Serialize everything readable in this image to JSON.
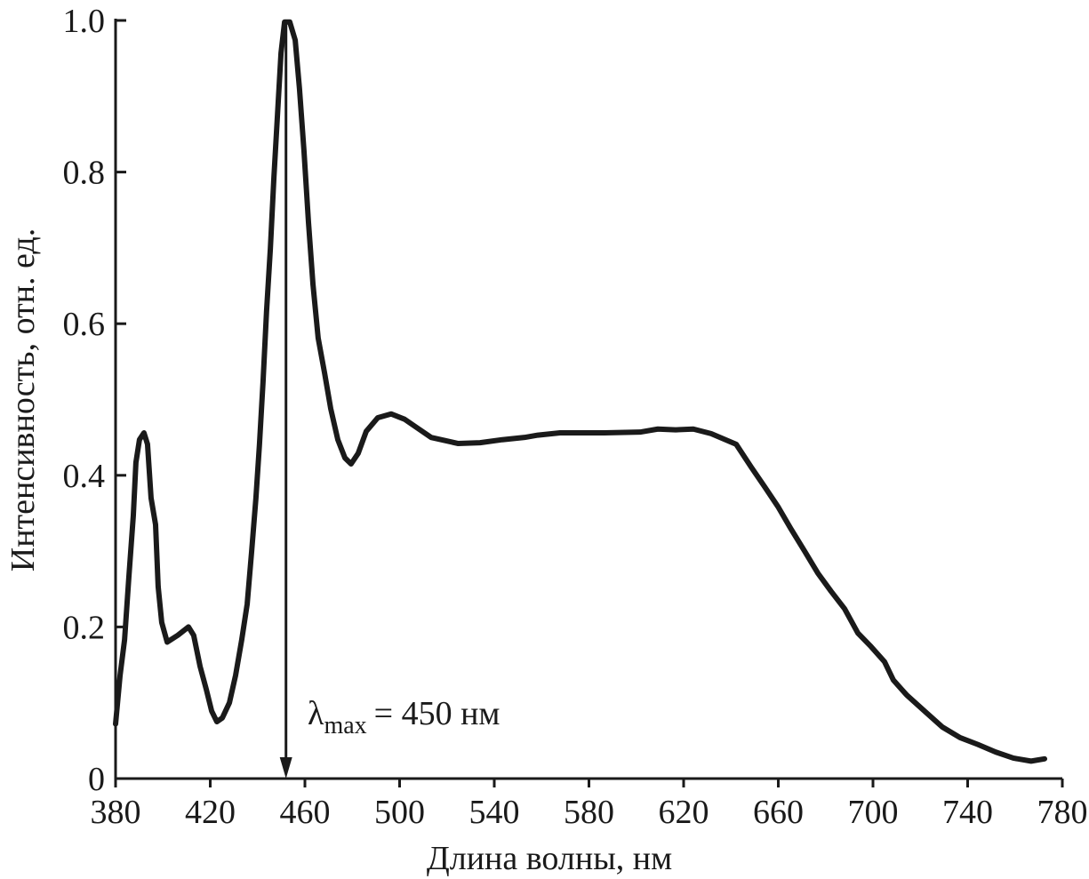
{
  "chart_data": {
    "type": "line",
    "xlabel": "Длина волны, нм",
    "ylabel": "Интенсивность, отн. ед.",
    "annotation": {
      "symbol": "λ",
      "subscript": "max",
      "text": "= 450 нм",
      "x": 452
    },
    "xlim": [
      380,
      780
    ],
    "xticks": [
      380,
      420,
      460,
      500,
      540,
      580,
      620,
      660,
      700,
      740,
      780
    ],
    "ylim": [
      0,
      1
    ],
    "yticks": [
      0,
      0.2,
      0.4,
      0.6,
      0.8,
      {
        "value": 1,
        "label": "1.0"
      }
    ],
    "series": [
      {
        "color": "#1a1a1a",
        "x": [
          380,
          381.9,
          383.8,
          385.6,
          387.5,
          388.6,
          390.1,
          392,
          393.5,
          395,
          396.9,
          398,
          399.5,
          401.8,
          406.3,
          410.8,
          413,
          415.7,
          418.3,
          420.6,
          422.8,
          425.1,
          428.1,
          430.7,
          433.3,
          435.6,
          437.5,
          439.3,
          440.8,
          442.3,
          443.8,
          445.4,
          446.9,
          448.4,
          449.9,
          451.4,
          453.6,
          455.9,
          457.7,
          459.6,
          461.5,
          463.4,
          465.6,
          468.3,
          470.9,
          473.9,
          476.9,
          479.5,
          482.5,
          485.9,
          490.8,
          496.4,
          502.1,
          507.7,
          513.3,
          519,
          524.6,
          534,
          543.4,
          552.8,
          558.4,
          567.8,
          586.6,
          601.6,
          609.1,
          616.6,
          624.1,
          631.6,
          642.2,
          648.5,
          654.2,
          659.8,
          665.4,
          671.1,
          676.7,
          682.3,
          688,
          693.6,
          699.2,
          704.9,
          708.6,
          714.3,
          721.8,
          729.3,
          736.8,
          744.3,
          751.8,
          759.3,
          766.8,
          772.5
        ],
        "values": [
          0.072,
          0.136,
          0.183,
          0.265,
          0.347,
          0.417,
          0.447,
          0.456,
          0.441,
          0.37,
          0.335,
          0.253,
          0.206,
          0.18,
          0.189,
          0.2,
          0.189,
          0.148,
          0.118,
          0.089,
          0.075,
          0.08,
          0.1,
          0.136,
          0.183,
          0.23,
          0.3,
          0.37,
          0.441,
          0.523,
          0.617,
          0.699,
          0.793,
          0.875,
          0.957,
          0.998,
          0.998,
          0.974,
          0.91,
          0.828,
          0.734,
          0.652,
          0.581,
          0.535,
          0.488,
          0.447,
          0.423,
          0.415,
          0.429,
          0.458,
          0.476,
          0.481,
          0.474,
          0.462,
          0.45,
          0.446,
          0.442,
          0.443,
          0.447,
          0.45,
          0.453,
          0.456,
          0.456,
          0.457,
          0.461,
          0.46,
          0.461,
          0.455,
          0.441,
          0.411,
          0.385,
          0.359,
          0.329,
          0.3,
          0.271,
          0.247,
          0.224,
          0.192,
          0.174,
          0.154,
          0.13,
          0.11,
          0.089,
          0.068,
          0.054,
          0.045,
          0.035,
          0.027,
          0.023,
          0.026
        ]
      }
    ]
  }
}
